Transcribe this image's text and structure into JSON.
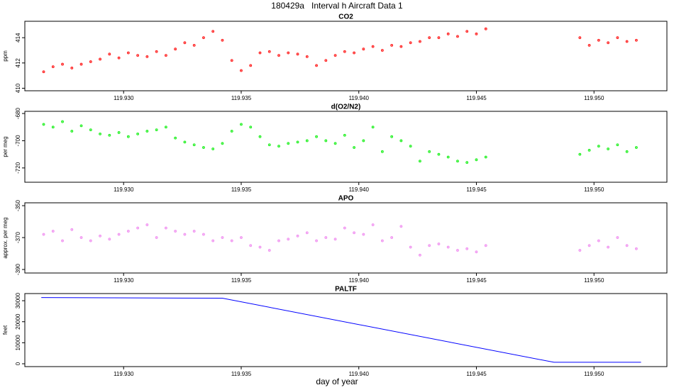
{
  "title": "180429a   Interval h Aircraft Data 1",
  "xlabel": "day of year",
  "chart_data": [
    {
      "type": "scatter",
      "title": "CO2",
      "ylabel": "ppm",
      "color": "#ff0000",
      "x": [
        119.9266,
        119.927,
        119.9274,
        119.9278,
        119.9282,
        119.9286,
        119.929,
        119.9294,
        119.9298,
        119.9302,
        119.9306,
        119.931,
        119.9314,
        119.9318,
        119.9322,
        119.9326,
        119.933,
        119.9334,
        119.9338,
        119.9342,
        119.9346,
        119.935,
        119.9354,
        119.9358,
        119.9362,
        119.9366,
        119.937,
        119.9374,
        119.9378,
        119.9382,
        119.9386,
        119.939,
        119.9394,
        119.9398,
        119.9402,
        119.9406,
        119.941,
        119.9414,
        119.9418,
        119.9422,
        119.9426,
        119.943,
        119.9434,
        119.9438,
        119.9442,
        119.9446,
        119.945,
        119.9454,
        119.9494,
        119.9498,
        119.9502,
        119.9506,
        119.951,
        119.9514,
        119.9518
      ],
      "values": [
        411.3,
        411.7,
        411.9,
        411.6,
        411.9,
        412.1,
        412.3,
        412.7,
        412.4,
        412.8,
        412.6,
        412.5,
        412.9,
        412.6,
        413.1,
        413.6,
        413.4,
        414.0,
        414.5,
        413.8,
        412.2,
        411.4,
        411.8,
        412.8,
        412.9,
        412.6,
        412.8,
        412.7,
        412.5,
        411.8,
        412.2,
        412.6,
        412.9,
        412.8,
        413.1,
        413.3,
        413.0,
        413.4,
        413.3,
        413.6,
        413.7,
        414.0,
        414.0,
        414.3,
        414.1,
        414.5,
        414.3,
        414.7,
        414.0,
        413.4,
        413.8,
        413.6,
        414.0,
        413.7,
        413.8
      ],
      "xlim": [
        119.9258,
        119.9531
      ],
      "ylim": [
        409.8,
        415.3
      ],
      "yticks": [
        410,
        412,
        414
      ],
      "xticks": [
        {
          "value": 119.93,
          "label": "119.930"
        },
        {
          "value": 119.935,
          "label": "119.935"
        },
        {
          "value": 119.94,
          "label": "119.940"
        },
        {
          "value": 119.945,
          "label": "119.945"
        },
        {
          "value": 119.95,
          "label": "119.950"
        }
      ]
    },
    {
      "type": "scatter",
      "title": "d(O2/N2)",
      "ylabel": "per meg",
      "color": "#00ee00",
      "x": [
        119.9266,
        119.927,
        119.9274,
        119.9278,
        119.9282,
        119.9286,
        119.929,
        119.9294,
        119.9298,
        119.9302,
        119.9306,
        119.931,
        119.9314,
        119.9318,
        119.9322,
        119.9326,
        119.933,
        119.9334,
        119.9338,
        119.9342,
        119.9346,
        119.935,
        119.9354,
        119.9358,
        119.9362,
        119.9366,
        119.937,
        119.9374,
        119.9378,
        119.9382,
        119.9386,
        119.939,
        119.9394,
        119.9398,
        119.9402,
        119.9406,
        119.941,
        119.9414,
        119.9418,
        119.9422,
        119.9426,
        119.943,
        119.9434,
        119.9438,
        119.9442,
        119.9446,
        119.945,
        119.9454,
        119.9494,
        119.9498,
        119.9502,
        119.9506,
        119.951,
        119.9514,
        119.9518
      ],
      "values": [
        -688,
        -690,
        -686,
        -693,
        -689,
        -692,
        -695,
        -696,
        -694,
        -697,
        -695,
        -693,
        -692,
        -690,
        -698,
        -701,
        -703,
        -705,
        -706,
        -702,
        -693,
        -688,
        -690,
        -697,
        -703,
        -704,
        -702,
        -701,
        -700,
        -697,
        -700,
        -702,
        -696,
        -705,
        -700,
        -690,
        -708,
        -697,
        -700,
        -704,
        -715,
        -708,
        -710,
        -712,
        -715,
        -716,
        -714,
        -712,
        -710,
        -707,
        -704,
        -706,
        -703,
        -708,
        -705
      ],
      "xlim": [
        119.9258,
        119.9531
      ],
      "ylim": [
        -730.5,
        -678.4
      ],
      "yticks": [
        -720,
        -700,
        -680
      ],
      "xticks": [
        {
          "value": 119.93,
          "label": "119.930"
        },
        {
          "value": 119.935,
          "label": "119.935"
        },
        {
          "value": 119.94,
          "label": "119.940"
        },
        {
          "value": 119.945,
          "label": "119.945"
        },
        {
          "value": 119.95,
          "label": "119.950"
        }
      ]
    },
    {
      "type": "scatter",
      "title": "APO",
      "ylabel": "approx. per meg",
      "color": "#ee82ee",
      "x": [
        119.9266,
        119.927,
        119.9274,
        119.9278,
        119.9282,
        119.9286,
        119.929,
        119.9294,
        119.9298,
        119.9302,
        119.9306,
        119.931,
        119.9314,
        119.9318,
        119.9322,
        119.9326,
        119.933,
        119.9334,
        119.9338,
        119.9342,
        119.9346,
        119.935,
        119.9354,
        119.9358,
        119.9362,
        119.9366,
        119.937,
        119.9374,
        119.9378,
        119.9382,
        119.9386,
        119.939,
        119.9394,
        119.9398,
        119.9402,
        119.9406,
        119.941,
        119.9414,
        119.9418,
        119.9422,
        119.9426,
        119.943,
        119.9434,
        119.9438,
        119.9442,
        119.9446,
        119.945,
        119.9454,
        119.9494,
        119.9498,
        119.9502,
        119.9506,
        119.951,
        119.9514,
        119.9518
      ],
      "values": [
        -368,
        -366,
        -372,
        -365,
        -370,
        -372,
        -369,
        -371,
        -368,
        -366,
        -364,
        -362,
        -370,
        -364,
        -366,
        -368,
        -366,
        -368,
        -372,
        -370,
        -372,
        -370,
        -375,
        -376,
        -378,
        -372,
        -371,
        -369,
        -367,
        -372,
        -370,
        -371,
        -364,
        -367,
        -368,
        -362,
        -372,
        -370,
        -363,
        -376,
        -381,
        -375,
        -374,
        -376,
        -378,
        -377,
        -379,
        -375,
        -378,
        -375,
        -372,
        -376,
        -370,
        -375,
        -377
      ],
      "xlim": [
        119.9258,
        119.9531
      ],
      "ylim": [
        -392.2,
        -348.2
      ],
      "yticks": [
        -390,
        -370,
        -350
      ],
      "xticks": [
        {
          "value": 119.93,
          "label": "119.930"
        },
        {
          "value": 119.935,
          "label": "119.935"
        },
        {
          "value": 119.94,
          "label": "119.940"
        },
        {
          "value": 119.945,
          "label": "119.945"
        },
        {
          "value": 119.95,
          "label": "119.950"
        }
      ]
    },
    {
      "type": "line",
      "title": "PALTF",
      "ylabel": "feet",
      "color": "#0000ff",
      "x": [
        119.9265,
        119.9342,
        119.9483,
        119.952
      ],
      "values": [
        31500,
        31200,
        700,
        700
      ],
      "xlim": [
        119.9258,
        119.9531
      ],
      "ylim": [
        -1350,
        33400
      ],
      "yticks": [
        0,
        10000,
        20000,
        30000
      ],
      "xticks": [
        {
          "value": 119.93,
          "label": "119.930"
        },
        {
          "value": 119.935,
          "label": "119.935"
        },
        {
          "value": 119.94,
          "label": "119.940"
        },
        {
          "value": 119.945,
          "label": "119.945"
        },
        {
          "value": 119.95,
          "label": "119.950"
        }
      ]
    }
  ]
}
